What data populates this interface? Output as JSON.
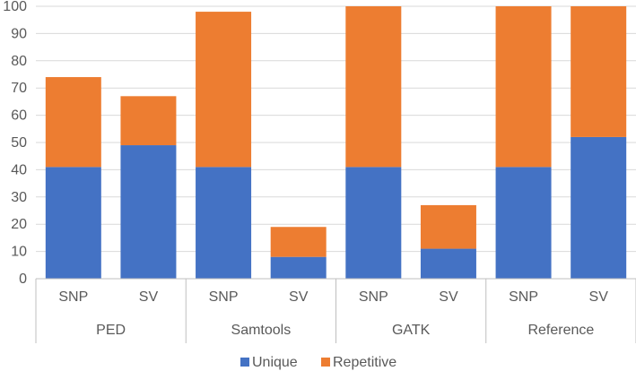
{
  "chart_data": {
    "type": "bar",
    "stacked": true,
    "title": "",
    "xlabel": "",
    "ylabel": "",
    "ylim": [
      0,
      100
    ],
    "y_ticks": [
      0,
      10,
      20,
      30,
      40,
      50,
      60,
      70,
      80,
      90,
      100
    ],
    "grid": true,
    "legend_position": "bottom",
    "groups": [
      {
        "label": "PED",
        "categories": [
          "SNP",
          "SV"
        ]
      },
      {
        "label": "Samtools",
        "categories": [
          "SNP",
          "SV"
        ]
      },
      {
        "label": "GATK",
        "categories": [
          "SNP",
          "SV"
        ]
      },
      {
        "label": "Reference",
        "categories": [
          "SNP",
          "SV"
        ]
      }
    ],
    "categories": [
      "SNP",
      "SV",
      "SNP",
      "SV",
      "SNP",
      "SV",
      "SNP",
      "SV"
    ],
    "series": [
      {
        "name": "Unique",
        "color": "#4472C4",
        "values": [
          41,
          49,
          41,
          8,
          41,
          11,
          41,
          52
        ]
      },
      {
        "name": "Repetitive",
        "color": "#ED7D31",
        "values": [
          33,
          18,
          57,
          11,
          59,
          16,
          59,
          48
        ]
      }
    ]
  }
}
